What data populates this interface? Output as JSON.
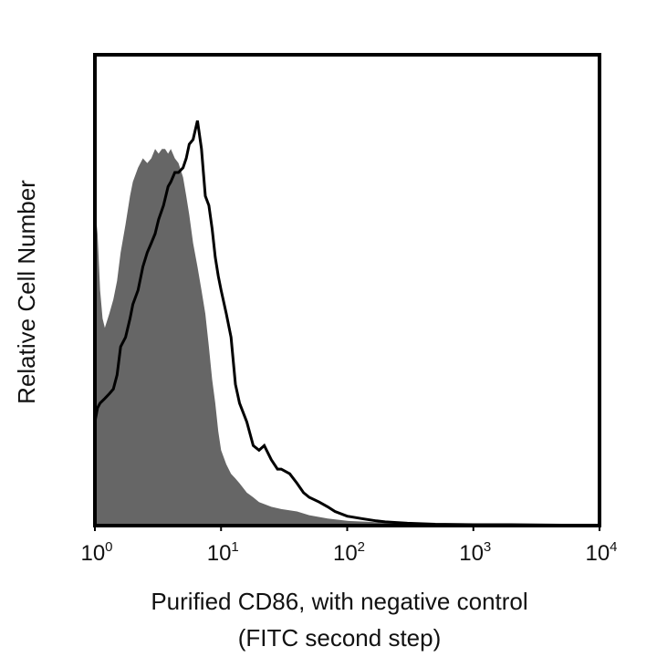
{
  "chart_data": {
    "type": "area",
    "xlabel_lines": [
      "Purified CD86, with negative control",
      "(FITC second step)"
    ],
    "ylabel": "Relative Cell Number",
    "x_scale": "log",
    "xlim": [
      1,
      10000
    ],
    "ylim": [
      0,
      1
    ],
    "grid": false,
    "x_ticks": [
      {
        "base": "10",
        "exp": "0",
        "value": 1
      },
      {
        "base": "10",
        "exp": "1",
        "value": 10
      },
      {
        "base": "10",
        "exp": "2",
        "value": 100
      },
      {
        "base": "10",
        "exp": "3",
        "value": 1000
      },
      {
        "base": "10",
        "exp": "4",
        "value": 10000
      }
    ],
    "colors": {
      "control_fill": "#666666",
      "stained_line": "#000000",
      "frame": "#000000"
    },
    "series": [
      {
        "style": "filled",
        "x": [
          1.0,
          1.05,
          1.1,
          1.15,
          1.2,
          1.3,
          1.4,
          1.5,
          1.6,
          1.75,
          1.9,
          2.0,
          2.2,
          2.4,
          2.6,
          2.8,
          3.0,
          3.2,
          3.4,
          3.6,
          3.8,
          4.0,
          4.3,
          4.6,
          5.0,
          5.3,
          5.6,
          6.0,
          6.5,
          7.0,
          7.5,
          8.0,
          8.5,
          9.0,
          9.5,
          10.0,
          11.0,
          12.0,
          13.0,
          14.0,
          16.0,
          18.0,
          20.0,
          25.0,
          30.0,
          40.0,
          50.0,
          70.0,
          100.0,
          150.0,
          200.0,
          300.0,
          500.0,
          1000.0,
          2000.0,
          5000.0,
          10000.0
        ],
        "y": [
          0.68,
          0.62,
          0.5,
          0.44,
          0.42,
          0.45,
          0.48,
          0.52,
          0.58,
          0.64,
          0.7,
          0.73,
          0.76,
          0.78,
          0.77,
          0.78,
          0.8,
          0.79,
          0.8,
          0.8,
          0.79,
          0.8,
          0.78,
          0.77,
          0.74,
          0.7,
          0.66,
          0.6,
          0.55,
          0.5,
          0.45,
          0.38,
          0.31,
          0.26,
          0.2,
          0.16,
          0.13,
          0.11,
          0.1,
          0.09,
          0.07,
          0.06,
          0.05,
          0.04,
          0.035,
          0.03,
          0.022,
          0.015,
          0.01,
          0.008,
          0.006,
          0.004,
          0.003,
          0.002,
          0.002,
          0.001,
          0.0
        ]
      },
      {
        "style": "outline",
        "x": [
          1.0,
          1.05,
          1.1,
          1.2,
          1.3,
          1.4,
          1.5,
          1.6,
          1.75,
          1.9,
          2.0,
          2.2,
          2.4,
          2.6,
          2.8,
          3.0,
          3.2,
          3.5,
          3.8,
          4.0,
          4.3,
          4.6,
          5.0,
          5.3,
          5.6,
          6.0,
          6.5,
          7.0,
          7.5,
          8.0,
          8.5,
          9.0,
          9.5,
          10.0,
          11.0,
          12.0,
          13.0,
          14.0,
          16.0,
          18.0,
          20.0,
          22.0,
          25.0,
          28.0,
          30.0,
          35.0,
          40.0,
          45.0,
          50.0,
          60.0,
          70.0,
          80.0,
          100.0,
          130.0,
          170.0,
          200.0,
          300.0,
          500.0,
          1000.0,
          2000.0,
          5000.0,
          10000.0
        ],
        "y": [
          0.22,
          0.25,
          0.26,
          0.27,
          0.28,
          0.29,
          0.32,
          0.38,
          0.4,
          0.44,
          0.47,
          0.5,
          0.55,
          0.58,
          0.6,
          0.62,
          0.65,
          0.68,
          0.72,
          0.73,
          0.75,
          0.75,
          0.76,
          0.78,
          0.81,
          0.82,
          0.86,
          0.8,
          0.7,
          0.68,
          0.63,
          0.57,
          0.53,
          0.5,
          0.45,
          0.4,
          0.3,
          0.26,
          0.22,
          0.17,
          0.16,
          0.17,
          0.14,
          0.12,
          0.12,
          0.11,
          0.09,
          0.07,
          0.06,
          0.05,
          0.04,
          0.03,
          0.02,
          0.015,
          0.01,
          0.008,
          0.005,
          0.003,
          0.002,
          0.002,
          0.001,
          0.0
        ]
      }
    ]
  }
}
